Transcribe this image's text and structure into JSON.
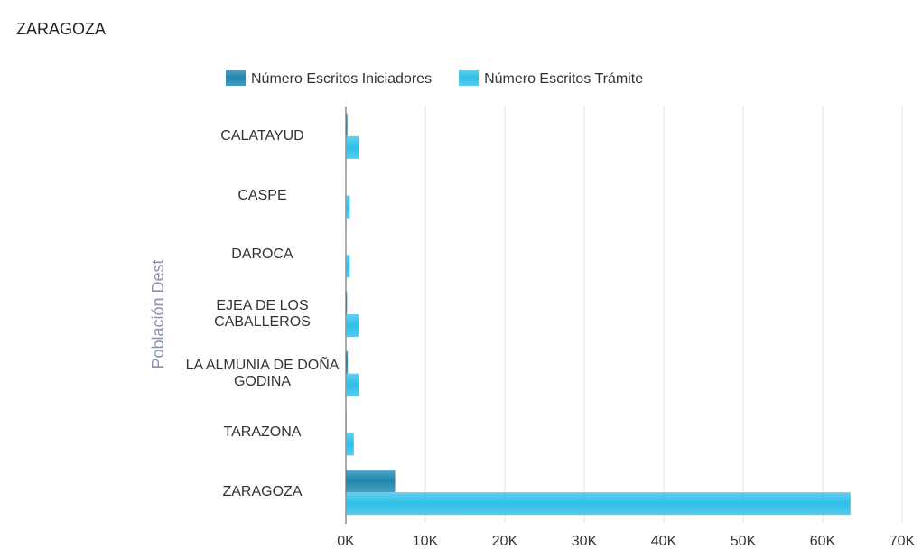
{
  "chart_data": {
    "type": "bar",
    "orientation": "horizontal",
    "title": "ZARAGOZA",
    "y_label": "Población Dest",
    "categories": [
      "CALATAYUD",
      "CASPE",
      "DAROCA",
      "EJEA DE LOS CABALLEROS",
      "LA ALMUNIA DE DOÑA GODINA",
      "TARAZONA",
      "ZARAGOZA"
    ],
    "series": [
      {
        "name": "Número Escritos Iniciadores",
        "color": "#1f86ad",
        "values": [
          200,
          50,
          50,
          150,
          250,
          80,
          6200
        ]
      },
      {
        "name": "Número Escritos Trámite",
        "color": "#2ebfe8",
        "values": [
          1600,
          500,
          500,
          1600,
          1600,
          1000,
          63500
        ]
      }
    ],
    "xlim": [
      0,
      70000
    ],
    "xticks": [
      {
        "value": 0,
        "label": "0K"
      },
      {
        "value": 10000,
        "label": "10K"
      },
      {
        "value": 20000,
        "label": "20K"
      },
      {
        "value": 30000,
        "label": "30K"
      },
      {
        "value": 40000,
        "label": "40K"
      },
      {
        "value": 50000,
        "label": "50K"
      },
      {
        "value": 60000,
        "label": "60K"
      },
      {
        "value": 70000,
        "label": "70K"
      }
    ],
    "grid": true,
    "legend": "top"
  }
}
